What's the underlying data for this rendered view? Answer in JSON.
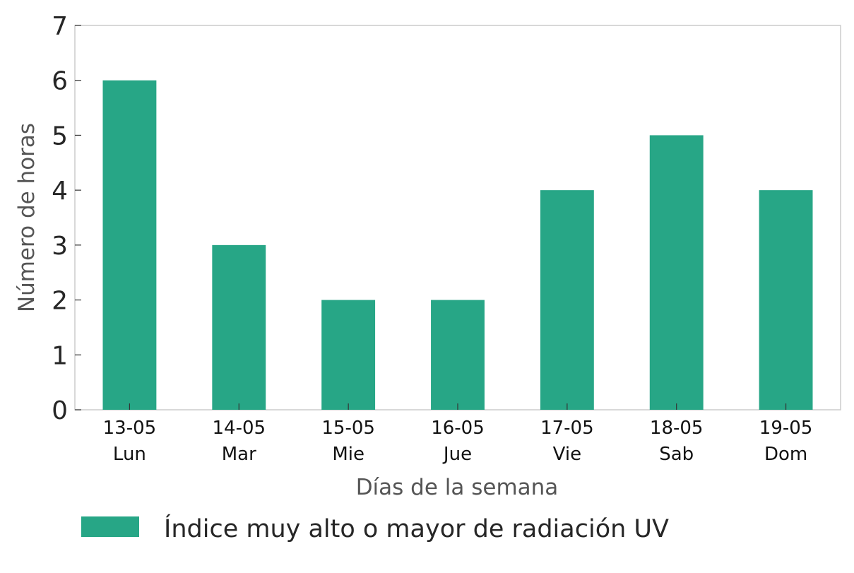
{
  "chart_data": {
    "type": "bar",
    "categories": [
      [
        "13-05",
        "Lun"
      ],
      [
        "14-05",
        "Mar"
      ],
      [
        "15-05",
        "Mie"
      ],
      [
        "16-05",
        "Jue"
      ],
      [
        "17-05",
        "Vie"
      ],
      [
        "18-05",
        "Sab"
      ],
      [
        "19-05",
        "Dom"
      ]
    ],
    "series": [
      {
        "name": "Índice muy alto o mayor de radiación UV",
        "values": [
          6,
          3,
          2,
          2,
          4,
          5,
          4
        ],
        "color": "#27a686"
      }
    ],
    "xlabel": "Días de la semana",
    "ylabel": "Número de horas",
    "ylim": [
      0,
      7
    ],
    "yticks": [
      0,
      1,
      2,
      3,
      4,
      5,
      6,
      7
    ],
    "grid": false,
    "legend_position": "bottom"
  },
  "colors": {
    "bar": "#27a686",
    "axis_frame": "#cccccc",
    "text_dark": "#262626",
    "text_muted": "#555555"
  }
}
